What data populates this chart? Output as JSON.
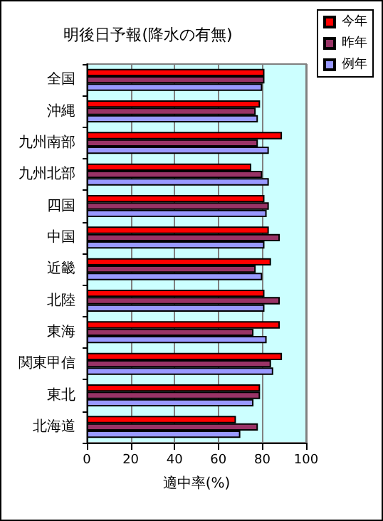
{
  "chart_data": {
    "type": "bar",
    "orientation": "horizontal",
    "title": "明後日予報(降水の有無)",
    "xlabel": "適中率(%)",
    "categories": [
      "全国",
      "沖縄",
      "九州南部",
      "九州北部",
      "四国",
      "中国",
      "近畿",
      "北陸",
      "東海",
      "関東甲信",
      "東北",
      "北海道"
    ],
    "series": [
      {
        "name": "今年",
        "color": "#ff0000",
        "values": [
          81,
          79,
          89,
          75,
          81,
          83,
          84,
          81,
          88,
          89,
          79,
          68
        ]
      },
      {
        "name": "昨年",
        "color": "#993366",
        "values": [
          81,
          77,
          78,
          80,
          83,
          88,
          77,
          88,
          76,
          84,
          79,
          78
        ]
      },
      {
        "name": "例年",
        "color": "#9999ff",
        "values": [
          80,
          78,
          83,
          83,
          82,
          81,
          80,
          81,
          82,
          85,
          76,
          70
        ]
      }
    ],
    "xlim": [
      0,
      100
    ],
    "xticks": [
      0,
      20,
      40,
      60,
      80,
      100
    ],
    "grid": "x",
    "legend": "top right"
  }
}
